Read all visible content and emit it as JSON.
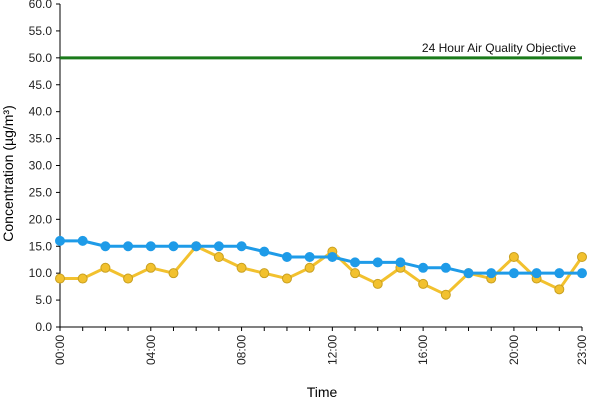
{
  "chart_data": {
    "type": "line",
    "xlabel": "Time",
    "ylabel": "Concentration (µg/m³)",
    "ylim": [
      0,
      60
    ],
    "y_ticks": [
      "0.0",
      "5.0",
      "10.0",
      "15.0",
      "20.0",
      "25.0",
      "30.0",
      "35.0",
      "40.0",
      "45.0",
      "50.0",
      "55.0",
      "60.0"
    ],
    "x_ticks": [
      {
        "x": 0,
        "label": "00:00"
      },
      {
        "x": 4,
        "label": "04:00"
      },
      {
        "x": 8,
        "label": "08:00"
      },
      {
        "x": 12,
        "label": "12:00"
      },
      {
        "x": 16,
        "label": "16:00"
      },
      {
        "x": 20,
        "label": "20:00"
      },
      {
        "x": 23,
        "label": "23:00"
      }
    ],
    "x": [
      0,
      1,
      2,
      3,
      4,
      5,
      6,
      7,
      8,
      9,
      10,
      11,
      12,
      13,
      14,
      15,
      16,
      17,
      18,
      19,
      20,
      21,
      22,
      23
    ],
    "series": [
      {
        "color": "#f2c12e",
        "stroke": "#c9a020",
        "values": [
          9,
          9,
          11,
          9,
          11,
          10,
          15,
          13,
          11,
          10,
          9,
          11,
          14,
          10,
          8,
          11,
          8,
          6,
          10,
          9,
          13,
          9,
          7,
          13
        ]
      },
      {
        "color": "#1e9be8",
        "stroke": "#1e9be8",
        "values": [
          16,
          16,
          15,
          15,
          15,
          15,
          15,
          15,
          15,
          14,
          13,
          13,
          13,
          12,
          12,
          12,
          11,
          11,
          10,
          10,
          10,
          10,
          10,
          10
        ]
      }
    ],
    "reference_line": {
      "value": 50,
      "label": "24 Hour Air Quality Objective",
      "color": "#1a7a1a"
    }
  }
}
